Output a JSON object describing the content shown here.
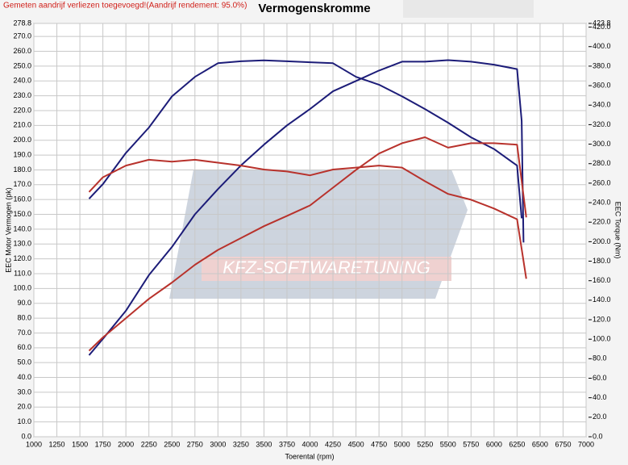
{
  "chart_data": {
    "type": "line",
    "title": "Vermogenskromme",
    "note": "Gemeten aandrijf verliezen toegevoegd!(Aandrijf rendement: 95.0%)",
    "watermark": "KFZ-SOFTWARETUNING",
    "x_label": "Toerental (rpm)",
    "y_label": "EEC Motor Vermogen (pk)",
    "y2_label": "EEC Torque (Nm)",
    "grid": true,
    "xlim": [
      1000,
      7000
    ],
    "xticks": [
      1000,
      1250,
      1500,
      1750,
      2000,
      2250,
      2500,
      2750,
      3000,
      3250,
      3500,
      3750,
      4000,
      4250,
      4500,
      4750,
      5000,
      5250,
      5500,
      5750,
      6000,
      6250,
      6500,
      6750,
      7000
    ],
    "ylim": [
      0,
      278.8
    ],
    "yticks": [
      {
        "value": 0,
        "label": "0.0"
      },
      {
        "value": 10,
        "label": "10.0"
      },
      {
        "value": 20,
        "label": "20.0"
      },
      {
        "value": 30,
        "label": "30.0"
      },
      {
        "value": 40,
        "label": "40.0"
      },
      {
        "value": 50,
        "label": "50.0"
      },
      {
        "value": 60,
        "label": "60.0"
      },
      {
        "value": 70,
        "label": "70.0"
      },
      {
        "value": 80,
        "label": "80.0"
      },
      {
        "value": 90,
        "label": "90.0"
      },
      {
        "value": 100,
        "label": "100.0"
      },
      {
        "value": 110,
        "label": "110.0"
      },
      {
        "value": 120,
        "label": "120.0"
      },
      {
        "value": 130,
        "label": "130.0"
      },
      {
        "value": 140,
        "label": "140.0"
      },
      {
        "value": 150,
        "label": "150.0"
      },
      {
        "value": 160,
        "label": "160.0"
      },
      {
        "value": 170,
        "label": "170.0"
      },
      {
        "value": 180,
        "label": "180.0"
      },
      {
        "value": 190,
        "label": "190.0"
      },
      {
        "value": 200,
        "label": "200.0"
      },
      {
        "value": 210,
        "label": "210.0"
      },
      {
        "value": 220,
        "label": "220.0"
      },
      {
        "value": 230,
        "label": "230.0"
      },
      {
        "value": 240,
        "label": "240.0"
      },
      {
        "value": 250,
        "label": "250.0"
      },
      {
        "value": 260,
        "label": "260.0"
      },
      {
        "value": 270,
        "label": "270.0"
      },
      278.8
    ],
    "y2lim": [
      0,
      423.8
    ],
    "y2ticks": [
      {
        "value": 0,
        "label": "0.0"
      },
      {
        "value": 20,
        "label": "20.0"
      },
      {
        "value": 40,
        "label": "40.0"
      },
      {
        "value": 60,
        "label": "60.0"
      },
      {
        "value": 80,
        "label": "80.0"
      },
      {
        "value": 100,
        "label": "100.0"
      },
      {
        "value": 120,
        "label": "120.0"
      },
      {
        "value": 140,
        "label": "140.0"
      },
      {
        "value": 160,
        "label": "160.0"
      },
      {
        "value": 180,
        "label": "180.0"
      },
      {
        "value": 200,
        "label": "200.0"
      },
      {
        "value": 220,
        "label": "220.0"
      },
      {
        "value": 240,
        "label": "240.0"
      },
      {
        "value": 260,
        "label": "260.0"
      },
      {
        "value": 280,
        "label": "280.0"
      },
      {
        "value": 300,
        "label": "300.0"
      },
      {
        "value": 320,
        "label": "320.0"
      },
      {
        "value": 340,
        "label": "340.0"
      },
      {
        "value": 360,
        "label": "360.0"
      },
      {
        "value": 380,
        "label": "380.0"
      },
      {
        "value": 400,
        "label": "400.0"
      },
      {
        "value": 420,
        "label": "420.0"
      },
      423.8
    ],
    "series": [
      {
        "color": "#1c1c78",
        "axis": "y",
        "x": [
          1600,
          1750,
          2000,
          2250,
          2500,
          2750,
          3000,
          3250,
          3500,
          3750,
          4000,
          4250,
          4500,
          4750,
          5000,
          5250,
          5500,
          5750,
          6000,
          6250,
          6300,
          6320
        ],
        "values": [
          55,
          66,
          85,
          109,
          128,
          150,
          167,
          183,
          197,
          210,
          221,
          233,
          240,
          247,
          253,
          253,
          254,
          253,
          251,
          248,
          213,
          131
        ]
      },
      {
        "color": "#1c1c78",
        "axis": "y2",
        "x": [
          1600,
          1750,
          2000,
          2250,
          2500,
          2750,
          3000,
          3250,
          3500,
          3750,
          4000,
          4250,
          4500,
          4750,
          5000,
          5250,
          5500,
          5750,
          6000,
          6250,
          6300
        ],
        "values": [
          244,
          259,
          291,
          317,
          349,
          369,
          383,
          385,
          386,
          385,
          384,
          383,
          369,
          361,
          349,
          336,
          322,
          307,
          295,
          278,
          224
        ]
      },
      {
        "color": "#b8322c",
        "axis": "y",
        "x": [
          1600,
          1750,
          2000,
          2250,
          2500,
          2750,
          3000,
          3250,
          3500,
          3750,
          4000,
          4250,
          4500,
          4750,
          5000,
          5250,
          5500,
          5750,
          6000,
          6250,
          6350
        ],
        "values": [
          58,
          67,
          80,
          93,
          104,
          116,
          126,
          134,
          142,
          149,
          156,
          168,
          180,
          191,
          198,
          202,
          195,
          198,
          198,
          197,
          148
        ]
      },
      {
        "color": "#b8322c",
        "axis": "y2",
        "x": [
          1600,
          1750,
          2000,
          2250,
          2500,
          2750,
          3000,
          3250,
          3500,
          3750,
          4000,
          4250,
          4500,
          4750,
          5000,
          5250,
          5500,
          5750,
          6000,
          6250,
          6350
        ],
        "values": [
          251,
          266,
          278,
          284,
          282,
          284,
          281,
          278,
          274,
          272,
          268,
          274,
          276,
          278,
          276,
          262,
          249,
          243,
          234,
          223,
          162
        ]
      }
    ]
  }
}
